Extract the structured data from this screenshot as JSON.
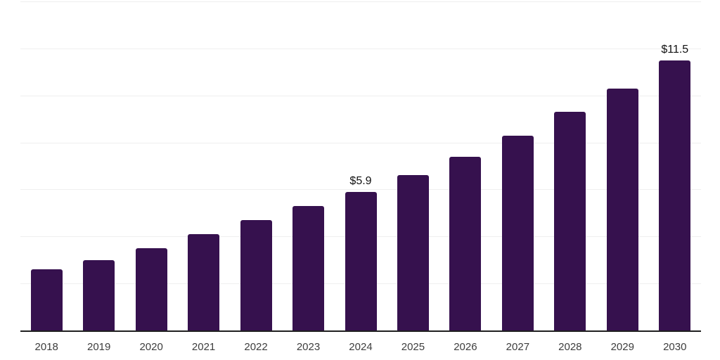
{
  "chart_data": {
    "type": "bar",
    "title": "",
    "xlabel": "",
    "ylabel": "",
    "categories": [
      "2018",
      "2019",
      "2020",
      "2021",
      "2022",
      "2023",
      "2024",
      "2025",
      "2026",
      "2027",
      "2028",
      "2029",
      "2030"
    ],
    "values": [
      2.6,
      3.0,
      3.5,
      4.1,
      4.7,
      5.3,
      5.9,
      6.6,
      7.4,
      8.3,
      9.3,
      10.3,
      11.5
    ],
    "data_labels": [
      {
        "category": "2024",
        "label": "$5.9"
      },
      {
        "category": "2030",
        "label": "$11.5"
      }
    ],
    "ylim": [
      0,
      14
    ],
    "gridline_step": 2,
    "grid": true,
    "legend": false,
    "y_axis_labels_visible": false,
    "colors": {
      "bar": "#36114E",
      "gridline": "#efefef",
      "axis": "#1f1f1f",
      "tick_label": "#3d3d3d",
      "value_label": "#111111",
      "background": "#ffffff"
    }
  }
}
